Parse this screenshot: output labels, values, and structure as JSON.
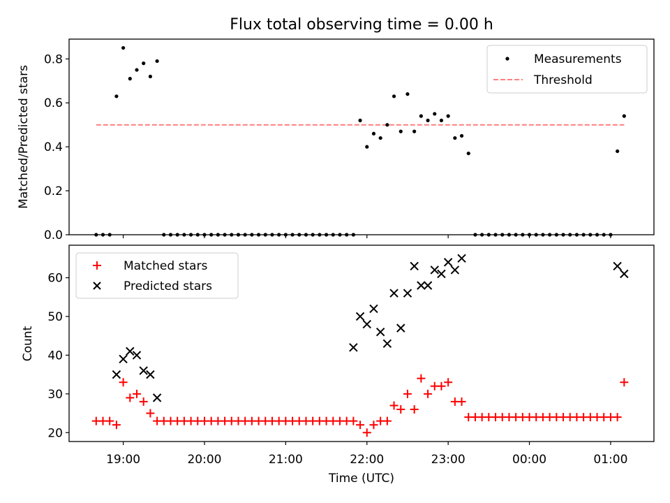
{
  "chart_data": [
    {
      "type": "scatter",
      "title": "Flux total observing time = 0.00 h",
      "xlabel": "",
      "ylabel": "Matched/Predicted stars",
      "xlim": [
        "18:20",
        "01:32"
      ],
      "ylim": [
        0,
        0.89
      ],
      "yticks": [
        0.0,
        0.2,
        0.4,
        0.6,
        0.8
      ],
      "ytick_labels": [
        "0.0",
        "0.2",
        "0.4",
        "0.6",
        "0.8"
      ],
      "legend_position": "top-right",
      "series": [
        {
          "name": "Measurements",
          "kind": "scatter",
          "color": "#000000",
          "x": [
            "18:40",
            "18:45",
            "18:50",
            "18:55",
            "19:00",
            "19:05",
            "19:10",
            "19:15",
            "19:20",
            "19:25",
            "19:30",
            "19:35",
            "19:40",
            "19:45",
            "19:50",
            "19:55",
            "20:00",
            "20:05",
            "20:10",
            "20:15",
            "20:20",
            "20:25",
            "20:30",
            "20:35",
            "20:40",
            "20:45",
            "20:50",
            "20:55",
            "21:00",
            "21:05",
            "21:10",
            "21:15",
            "21:20",
            "21:25",
            "21:30",
            "21:35",
            "21:40",
            "21:45",
            "21:50",
            "21:55",
            "22:00",
            "22:05",
            "22:10",
            "22:15",
            "22:20",
            "22:25",
            "22:30",
            "22:35",
            "22:40",
            "22:45",
            "22:50",
            "22:55",
            "23:00",
            "23:05",
            "23:10",
            "23:15",
            "23:20",
            "23:25",
            "23:30",
            "23:35",
            "23:40",
            "23:45",
            "23:50",
            "23:55",
            "00:00",
            "00:05",
            "00:10",
            "00:15",
            "00:20",
            "00:25",
            "00:30",
            "00:35",
            "00:40",
            "00:45",
            "00:50",
            "00:55",
            "01:00",
            "01:05",
            "01:10"
          ],
          "y": [
            0,
            0,
            0,
            0.63,
            0.85,
            0.71,
            0.75,
            0.78,
            0.72,
            0.79,
            0,
            0,
            0,
            0,
            0,
            0,
            0,
            0,
            0,
            0,
            0,
            0,
            0,
            0,
            0,
            0,
            0,
            0,
            0,
            0,
            0,
            0,
            0,
            0,
            0,
            0,
            0,
            0,
            0,
            0.52,
            0.4,
            0.46,
            0.44,
            0.5,
            0.63,
            0.47,
            0.64,
            0.47,
            0.54,
            0.52,
            0.55,
            0.52,
            0.54,
            0.44,
            0.45,
            0.37,
            0,
            0,
            0,
            0,
            0,
            0,
            0,
            0,
            0,
            0,
            0,
            0,
            0,
            0,
            0,
            0,
            0,
            0,
            0,
            0,
            0,
            0.38,
            0.54
          ]
        },
        {
          "name": "Threshold",
          "kind": "line",
          "style": "dashed",
          "color": "#ff7f7f",
          "x": [
            "18:40",
            "01:10"
          ],
          "y": [
            0.5,
            0.5
          ]
        }
      ]
    },
    {
      "type": "scatter",
      "title": "",
      "xlabel": "Time (UTC)",
      "ylabel": "Count",
      "xlim": [
        "18:20",
        "01:32"
      ],
      "ylim": [
        17.7,
        68.4
      ],
      "yticks": [
        20,
        30,
        40,
        50,
        60
      ],
      "ytick_labels": [
        "20",
        "30",
        "40",
        "50",
        "60"
      ],
      "xticks": [
        "19:00",
        "20:00",
        "21:00",
        "22:00",
        "23:00",
        "00:00",
        "01:00"
      ],
      "legend_position": "top-left",
      "series": [
        {
          "name": "Matched stars",
          "marker": "+",
          "color": "#ff0000",
          "x": [
            "18:40",
            "18:45",
            "18:50",
            "18:55",
            "19:00",
            "19:05",
            "19:10",
            "19:15",
            "19:20",
            "19:25",
            "19:30",
            "19:35",
            "19:40",
            "19:45",
            "19:50",
            "19:55",
            "20:00",
            "20:05",
            "20:10",
            "20:15",
            "20:20",
            "20:25",
            "20:30",
            "20:35",
            "20:40",
            "20:45",
            "20:50",
            "20:55",
            "21:00",
            "21:05",
            "21:10",
            "21:15",
            "21:20",
            "21:25",
            "21:30",
            "21:35",
            "21:40",
            "21:45",
            "21:50",
            "21:55",
            "22:00",
            "22:05",
            "22:10",
            "22:15",
            "22:20",
            "22:25",
            "22:30",
            "22:35",
            "22:40",
            "22:45",
            "22:50",
            "22:55",
            "23:00",
            "23:05",
            "23:10",
            "23:15",
            "23:20",
            "23:25",
            "23:30",
            "23:35",
            "23:40",
            "23:45",
            "23:50",
            "23:55",
            "00:00",
            "00:05",
            "00:10",
            "00:15",
            "00:20",
            "00:25",
            "00:30",
            "00:35",
            "00:40",
            "00:45",
            "00:50",
            "00:55",
            "01:00",
            "01:05",
            "01:10"
          ],
          "y": [
            23,
            23,
            23,
            22,
            33,
            29,
            30,
            28,
            25,
            23,
            23,
            23,
            23,
            23,
            23,
            23,
            23,
            23,
            23,
            23,
            23,
            23,
            23,
            23,
            23,
            23,
            23,
            23,
            23,
            23,
            23,
            23,
            23,
            23,
            23,
            23,
            23,
            23,
            23,
            22,
            20,
            22,
            23,
            23,
            27,
            26,
            30,
            26,
            34,
            30,
            32,
            32,
            33,
            28,
            28,
            24,
            24,
            24,
            24,
            24,
            24,
            24,
            24,
            24,
            24,
            24,
            24,
            24,
            24,
            24,
            24,
            24,
            24,
            24,
            24,
            24,
            24,
            24,
            33
          ]
        },
        {
          "name": "Predicted stars",
          "marker": "x",
          "color": "#000000",
          "x": [
            "18:55",
            "19:00",
            "19:05",
            "19:10",
            "19:15",
            "19:20",
            "19:25",
            "21:50",
            "21:55",
            "22:00",
            "22:05",
            "22:10",
            "22:15",
            "22:20",
            "22:25",
            "22:30",
            "22:35",
            "22:40",
            "22:45",
            "22:50",
            "22:55",
            "23:00",
            "23:05",
            "23:10",
            "01:05",
            "01:10"
          ],
          "y": [
            35,
            39,
            41,
            40,
            36,
            35,
            29,
            42,
            50,
            48,
            52,
            46,
            43,
            56,
            47,
            56,
            63,
            58,
            58,
            62,
            61,
            64,
            62,
            65,
            63,
            61
          ]
        }
      ]
    }
  ]
}
